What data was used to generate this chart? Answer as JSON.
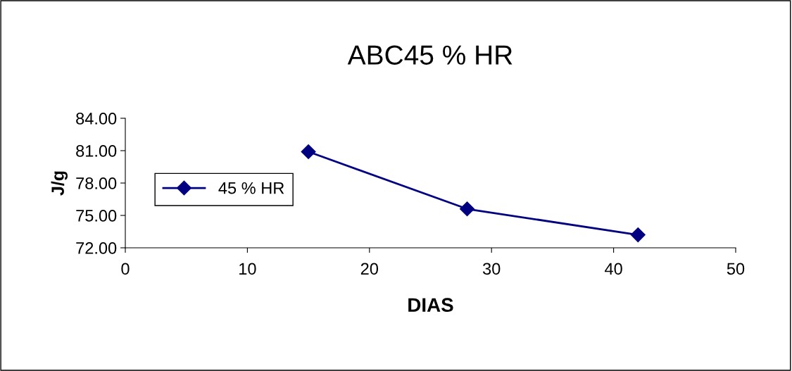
{
  "chart_data": {
    "type": "line",
    "title": "ABC45 % HR",
    "xlabel": "DIAS",
    "ylabel": "J/g",
    "x": [
      15,
      28,
      42
    ],
    "series": [
      {
        "name": "45 % HR",
        "color": "#000080",
        "values": [
          80.9,
          75.6,
          73.2
        ]
      }
    ],
    "xlim": [
      0,
      50
    ],
    "xticks": [
      0,
      10,
      20,
      30,
      40,
      50
    ],
    "ylim": [
      72,
      84
    ],
    "yticks": [
      {
        "value": 72,
        "label": "72.00"
      },
      {
        "value": 75,
        "label": "75.00"
      },
      {
        "value": 78,
        "label": "78.00"
      },
      {
        "value": 81,
        "label": "81.00"
      },
      {
        "value": 84,
        "label": "84.00"
      }
    ],
    "grid": false,
    "legend": "left",
    "marker": "diamond",
    "line_style": "solid"
  }
}
